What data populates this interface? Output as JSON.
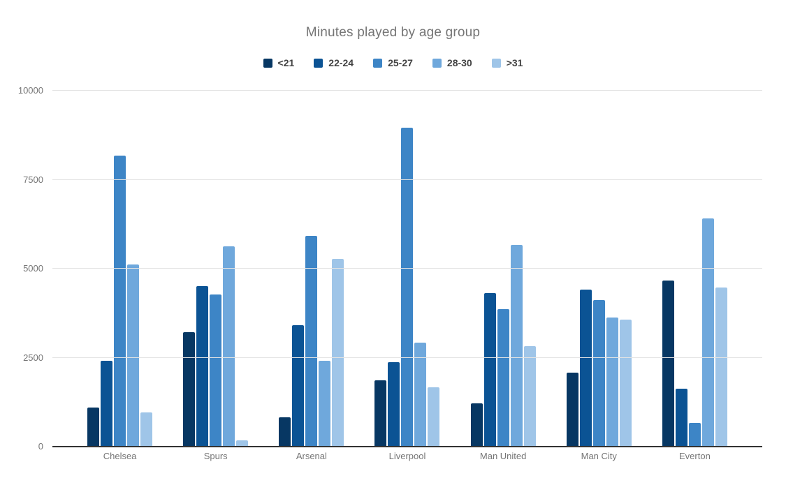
{
  "title": "Minutes played by age group",
  "chart_data": {
    "type": "bar",
    "title": "Minutes played by age group",
    "categories": [
      "Chelsea",
      "Spurs",
      "Arsenal",
      "Liverpool",
      "Man United",
      "Man City",
      "Everton"
    ],
    "series": [
      {
        "name": "<21",
        "color": "#073763",
        "values": [
          1080,
          3200,
          800,
          1850,
          1200,
          2050,
          4650
        ]
      },
      {
        "name": "22-24",
        "color": "#0b5394",
        "values": [
          2400,
          4500,
          3400,
          2350,
          4300,
          4400,
          1600
        ]
      },
      {
        "name": "25-27",
        "color": "#3d85c6",
        "values": [
          8150,
          4250,
          5900,
          8950,
          3850,
          4100,
          640
        ]
      },
      {
        "name": "28-30",
        "color": "#6fa8dc",
        "values": [
          5100,
          5600,
          2400,
          2900,
          5650,
          3600,
          6400
        ]
      },
      {
        "name": ">31",
        "color": "#9fc5e8",
        "values": [
          950,
          150,
          5250,
          1640,
          2800,
          3550,
          4450
        ]
      }
    ],
    "xlabel": "",
    "ylabel": "",
    "ylim": [
      0,
      10000
    ],
    "yticks": [
      0,
      2500,
      5000,
      7500,
      10000
    ],
    "grid": true,
    "legend_position": "top"
  },
  "colors": {
    "background": "#ffffff",
    "title_text": "#757575",
    "legend_text": "#424242",
    "axis_text": "#757575",
    "gridline": "#e3e3e3",
    "axis_line": "#333333"
  }
}
